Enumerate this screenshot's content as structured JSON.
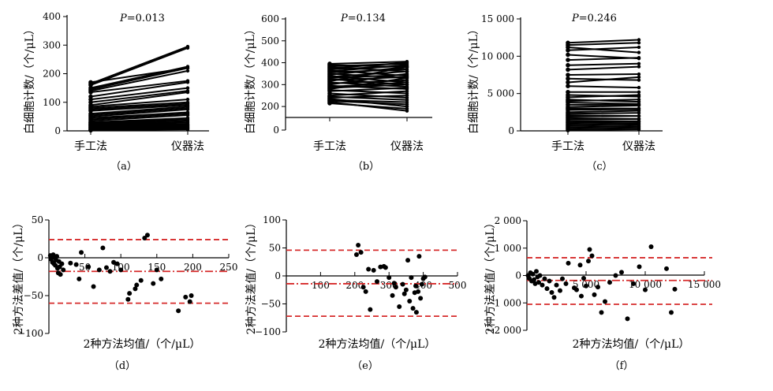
{
  "chart_data": [
    {
      "id": "a",
      "type": "line",
      "panel_label": "（a）",
      "p_label": "P",
      "p_value": "=0.013",
      "ylabel": "白细胞计数/（个/μL）",
      "categories": [
        "手工法",
        "仪器法"
      ],
      "ylim": [
        0,
        400
      ],
      "yticks": [
        0,
        100,
        200,
        300,
        400
      ],
      "ytick_labels": [
        "0",
        "100",
        "200",
        "300",
        "400"
      ],
      "pairs": [
        [
          170,
          220
        ],
        [
          165,
          295
        ],
        [
          160,
          290
        ],
        [
          150,
          225
        ],
        [
          145,
          220
        ],
        [
          140,
          210
        ],
        [
          135,
          175
        ],
        [
          120,
          170
        ],
        [
          110,
          150
        ],
        [
          100,
          140
        ],
        [
          90,
          135
        ],
        [
          85,
          110
        ],
        [
          80,
          100
        ],
        [
          75,
          95
        ],
        [
          70,
          90
        ],
        [
          60,
          85
        ],
        [
          55,
          80
        ],
        [
          50,
          75
        ],
        [
          45,
          65
        ],
        [
          40,
          60
        ],
        [
          35,
          55
        ],
        [
          30,
          45
        ],
        [
          28,
          40
        ],
        [
          25,
          35
        ],
        [
          22,
          30
        ],
        [
          20,
          25
        ],
        [
          18,
          22
        ],
        [
          15,
          20
        ],
        [
          12,
          18
        ],
        [
          10,
          15
        ],
        [
          8,
          12
        ],
        [
          5,
          10
        ],
        [
          3,
          8
        ],
        [
          2,
          5
        ]
      ]
    },
    {
      "id": "b",
      "type": "line",
      "panel_label": "（b）",
      "p_label": "P",
      "p_value": "=0.134",
      "ylabel": "白细胞计数/（个/μL）",
      "categories": [
        "手工法",
        "仪器法"
      ],
      "ylim": [
        150,
        600
      ],
      "yticks": [
        200,
        300,
        400,
        500,
        600
      ],
      "ytick_labels": [
        "200",
        "300",
        "400",
        "500",
        "600"
      ],
      "extra_bottom_tick": "0",
      "pairs": [
        [
          395,
          405
        ],
        [
          390,
          380
        ],
        [
          385,
          395
        ],
        [
          380,
          360
        ],
        [
          375,
          400
        ],
        [
          370,
          385
        ],
        [
          365,
          340
        ],
        [
          360,
          390
        ],
        [
          355,
          370
        ],
        [
          350,
          330
        ],
        [
          345,
          380
        ],
        [
          340,
          310
        ],
        [
          335,
          360
        ],
        [
          330,
          345
        ],
        [
          325,
          300
        ],
        [
          320,
          335
        ],
        [
          315,
          380
        ],
        [
          310,
          290
        ],
        [
          305,
          320
        ],
        [
          300,
          350
        ],
        [
          295,
          280
        ],
        [
          290,
          310
        ],
        [
          285,
          300
        ],
        [
          280,
          330
        ],
        [
          275,
          260
        ],
        [
          270,
          285
        ],
        [
          260,
          240
        ],
        [
          250,
          270
        ],
        [
          245,
          230
        ],
        [
          240,
          250
        ],
        [
          235,
          200
        ],
        [
          230,
          220
        ],
        [
          225,
          210
        ],
        [
          220,
          180
        ],
        [
          215,
          190
        ]
      ]
    },
    {
      "id": "c",
      "type": "line",
      "panel_label": "（c）",
      "p_label": "P",
      "p_value": "=0.246",
      "ylabel": "白细胞计数/（个/μL）",
      "categories": [
        "手工法",
        "仪器法"
      ],
      "ylim": [
        0,
        15000
      ],
      "yticks": [
        0,
        5000,
        10000,
        15000
      ],
      "ytick_labels": [
        "0",
        "5 000",
        "10 000",
        "15 000"
      ],
      "pairs": [
        [
          11800,
          12200
        ],
        [
          11500,
          11800
        ],
        [
          11200,
          10500
        ],
        [
          10800,
          11200
        ],
        [
          10200,
          9700
        ],
        [
          9500,
          9800
        ],
        [
          8800,
          9000
        ],
        [
          8200,
          8600
        ],
        [
          7500,
          7600
        ],
        [
          7000,
          6800
        ],
        [
          6500,
          7200
        ],
        [
          6000,
          5800
        ],
        [
          5200,
          5200
        ],
        [
          4800,
          4600
        ],
        [
          4500,
          4800
        ],
        [
          4200,
          3900
        ],
        [
          4000,
          4200
        ],
        [
          3800,
          3600
        ],
        [
          3500,
          3500
        ],
        [
          3200,
          3400
        ],
        [
          3000,
          3000
        ],
        [
          2800,
          2900
        ],
        [
          2500,
          2700
        ],
        [
          2300,
          2400
        ],
        [
          2100,
          2000
        ],
        [
          1900,
          2000
        ],
        [
          1700,
          1600
        ],
        [
          1500,
          1600
        ],
        [
          1300,
          1300
        ],
        [
          1100,
          1200
        ],
        [
          900,
          1000
        ],
        [
          700,
          800
        ],
        [
          500,
          600
        ],
        [
          300,
          400
        ],
        [
          100,
          200
        ]
      ]
    },
    {
      "id": "d",
      "type": "scatter",
      "panel_label": "（d）",
      "ylabel": "2种方法差值/（个/μL）",
      "xlabel": "2种方法均值/（个/μL）",
      "xlim": [
        0,
        250
      ],
      "xticks": [
        50,
        100,
        150,
        200,
        250
      ],
      "xtick_labels": [
        "50",
        "100",
        "150",
        "200",
        "250"
      ],
      "ylim": [
        -100,
        50
      ],
      "yticks": [
        -100,
        -50,
        0,
        50
      ],
      "ytick_labels": [
        "−100",
        "−50",
        "0",
        "50"
      ],
      "reference_lines": [
        24,
        -18,
        -60
      ],
      "points": [
        [
          2,
          3
        ],
        [
          3,
          -2
        ],
        [
          4,
          1
        ],
        [
          5,
          -6
        ],
        [
          6,
          4
        ],
        [
          7,
          -8
        ],
        [
          8,
          0
        ],
        [
          9,
          -10
        ],
        [
          10,
          -3
        ],
        [
          11,
          2
        ],
        [
          12,
          -14
        ],
        [
          13,
          -20
        ],
        [
          14,
          -5
        ],
        [
          15,
          -12
        ],
        [
          16,
          -22
        ],
        [
          18,
          -8
        ],
        [
          20,
          -16
        ],
        [
          30,
          -7
        ],
        [
          38,
          -9
        ],
        [
          42,
          -28
        ],
        [
          45,
          7
        ],
        [
          55,
          -12
        ],
        [
          62,
          -38
        ],
        [
          70,
          -16
        ],
        [
          75,
          13
        ],
        [
          80,
          -13
        ],
        [
          85,
          -18
        ],
        [
          90,
          -6
        ],
        [
          95,
          -8
        ],
        [
          100,
          -16
        ],
        [
          110,
          -55
        ],
        [
          112,
          -47
        ],
        [
          120,
          -41
        ],
        [
          122,
          -36
        ],
        [
          128,
          -30
        ],
        [
          133,
          26
        ],
        [
          137,
          30
        ],
        [
          145,
          -34
        ],
        [
          150,
          -16
        ],
        [
          156,
          -28
        ],
        [
          180,
          -70
        ],
        [
          190,
          -52
        ],
        [
          196,
          -58
        ],
        [
          198,
          -50
        ]
      ]
    },
    {
      "id": "e",
      "type": "scatter",
      "panel_label": "（e）",
      "ylabel": "2种方法差值/（个/μL）",
      "xlabel": "2种方法均值/（个/μL）",
      "xlim": [
        0,
        500
      ],
      "xticks": [
        100,
        200,
        300,
        400,
        500
      ],
      "xtick_labels": [
        "100",
        "200",
        "300",
        "400",
        "500"
      ],
      "ylim": [
        -100,
        100
      ],
      "yticks": [
        -100,
        -50,
        0,
        50,
        100
      ],
      "ytick_labels": [
        "−100",
        "−50",
        "0",
        "50",
        "100"
      ],
      "reference_lines": [
        46,
        -14,
        -72
      ],
      "points": [
        [
          205,
          38
        ],
        [
          210,
          55
        ],
        [
          218,
          42
        ],
        [
          225,
          -20
        ],
        [
          232,
          -28
        ],
        [
          240,
          12
        ],
        [
          245,
          -60
        ],
        [
          255,
          10
        ],
        [
          265,
          -10
        ],
        [
          275,
          16
        ],
        [
          285,
          17
        ],
        [
          290,
          15
        ],
        [
          300,
          -3
        ],
        [
          310,
          -35
        ],
        [
          315,
          -13
        ],
        [
          320,
          -20
        ],
        [
          330,
          -55
        ],
        [
          340,
          -15
        ],
        [
          345,
          -32
        ],
        [
          350,
          -25
        ],
        [
          355,
          28
        ],
        [
          360,
          -45
        ],
        [
          365,
          -3
        ],
        [
          370,
          -58
        ],
        [
          375,
          -30
        ],
        [
          378,
          -18
        ],
        [
          380,
          -65
        ],
        [
          385,
          -28
        ],
        [
          388,
          35
        ],
        [
          392,
          -40
        ],
        [
          396,
          -15
        ],
        [
          400,
          -5
        ],
        [
          405,
          -2
        ]
      ]
    },
    {
      "id": "f",
      "type": "scatter",
      "panel_label": "（f）",
      "ylabel": "2种方法差值/（个/μL）",
      "xlabel": "2种方法均值/（个/μL）",
      "xlim": [
        0,
        15000
      ],
      "xticks": [
        5000,
        10000,
        15000
      ],
      "xtick_labels": [
        "5 000",
        "10 000",
        "15 000"
      ],
      "ylim": [
        -2000,
        2000
      ],
      "yticks": [
        -2000,
        -1000,
        0,
        1000,
        2000
      ],
      "ytick_labels": [
        "−2 000",
        "−1 000",
        "0",
        "1 000",
        "2 000"
      ],
      "reference_lines": [
        650,
        -180,
        -1050
      ],
      "points": [
        [
          100,
          0
        ],
        [
          200,
          -100
        ],
        [
          300,
          100
        ],
        [
          400,
          -200
        ],
        [
          500,
          50
        ],
        [
          600,
          -150
        ],
        [
          700,
          -300
        ],
        [
          800,
          150
        ],
        [
          900,
          -50
        ],
        [
          1000,
          -250
        ],
        [
          1100,
          0
        ],
        [
          1300,
          -350
        ],
        [
          1500,
          -120
        ],
        [
          1700,
          -480
        ],
        [
          1900,
          -200
        ],
        [
          2100,
          -620
        ],
        [
          2300,
          -800
        ],
        [
          2500,
          -350
        ],
        [
          2800,
          -550
        ],
        [
          3000,
          -120
        ],
        [
          3300,
          -300
        ],
        [
          3500,
          450
        ],
        [
          4000,
          -450
        ],
        [
          4200,
          -520
        ],
        [
          4500,
          380
        ],
        [
          4600,
          -750
        ],
        [
          4800,
          -100
        ],
        [
          5000,
          -380
        ],
        [
          5200,
          530
        ],
        [
          5300,
          950
        ],
        [
          5500,
          720
        ],
        [
          5700,
          -700
        ],
        [
          6000,
          -420
        ],
        [
          6300,
          -1350
        ],
        [
          6600,
          -950
        ],
        [
          7000,
          -250
        ],
        [
          7500,
          0
        ],
        [
          8000,
          120
        ],
        [
          8500,
          -1580
        ],
        [
          9000,
          -300
        ],
        [
          9500,
          320
        ],
        [
          10000,
          -520
        ],
        [
          10500,
          1050
        ],
        [
          11800,
          250
        ],
        [
          12200,
          -1350
        ],
        [
          12500,
          -500
        ]
      ]
    }
  ]
}
